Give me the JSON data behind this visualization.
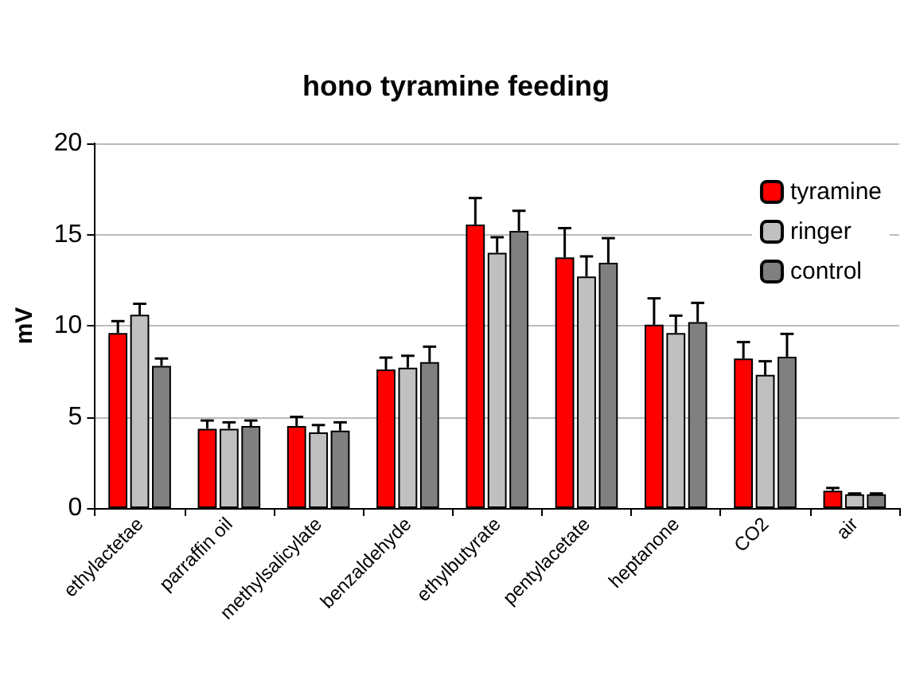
{
  "chart_data": {
    "type": "bar",
    "title": "hono tyramine feeding",
    "ylabel": "mV",
    "categories": [
      "ethylactetae",
      "parraffin oil",
      "methylsalicylate",
      "benzaldehyde",
      "ethylbutyrate",
      "pentylacetate",
      "heptanone",
      "CO2",
      "air"
    ],
    "series": [
      {
        "name": "tyramine",
        "color": "#ff0000",
        "values": [
          9.6,
          4.35,
          4.5,
          7.6,
          15.55,
          13.75,
          10.05,
          8.2,
          0.95
        ],
        "errors": [
          [
            9.6,
            10.25
          ],
          [
            4.35,
            4.8
          ],
          [
            4.5,
            5.0
          ],
          [
            7.6,
            8.25
          ],
          [
            15.55,
            17.0
          ],
          [
            13.75,
            15.35
          ],
          [
            10.05,
            11.5
          ],
          [
            8.2,
            9.1
          ],
          [
            0.95,
            1.1
          ]
        ]
      },
      {
        "name": "ringer",
        "color": "#c0c0c0",
        "values": [
          10.6,
          4.35,
          4.15,
          7.7,
          14.0,
          12.7,
          9.6,
          7.3,
          0.75
        ],
        "errors": [
          [
            10.6,
            11.2
          ],
          [
            4.35,
            4.7
          ],
          [
            4.15,
            4.55
          ],
          [
            7.7,
            8.35
          ],
          [
            14.0,
            14.85
          ],
          [
            12.7,
            13.8
          ],
          [
            9.6,
            10.55
          ],
          [
            7.3,
            8.05
          ],
          [
            0.75,
            0.8
          ]
        ]
      },
      {
        "name": "control",
        "color": "#808080",
        "values": [
          7.8,
          4.5,
          4.25,
          8.0,
          15.2,
          13.45,
          10.2,
          8.3,
          0.75
        ],
        "errors": [
          [
            7.8,
            8.2
          ],
          [
            4.5,
            4.8
          ],
          [
            4.25,
            4.7
          ],
          [
            8.0,
            8.85
          ],
          [
            15.2,
            16.3
          ],
          [
            13.45,
            14.8
          ],
          [
            10.2,
            11.25
          ],
          [
            8.3,
            9.55
          ],
          [
            0.75,
            0.8
          ]
        ]
      }
    ],
    "ylim": [
      0,
      20
    ],
    "yticks": [
      0,
      5,
      10,
      15,
      20
    ],
    "grid": "y",
    "legend": "top right"
  }
}
